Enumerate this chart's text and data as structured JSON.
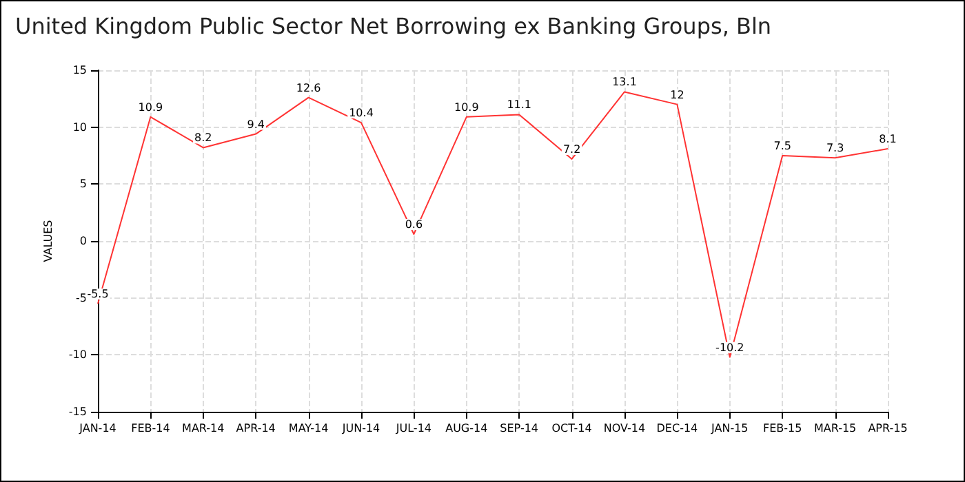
{
  "chart_data": {
    "type": "line",
    "title": "United Kingdom Public Sector Net Borrowing ex Banking Groups, Bln",
    "ylabel": "VALUES",
    "categories": [
      "JAN-14",
      "FEB-14",
      "MAR-14",
      "APR-14",
      "MAY-14",
      "JUN-14",
      "JUL-14",
      "AUG-14",
      "SEP-14",
      "OCT-14",
      "NOV-14",
      "DEC-14",
      "JAN-15",
      "FEB-15",
      "MAR-15",
      "APR-15"
    ],
    "series": [
      {
        "color": "#ff3333",
        "values": [
          -5.5,
          10.9,
          8.2,
          9.4,
          12.6,
          10.4,
          0.6,
          10.9,
          11.1,
          7.2,
          13.1,
          12,
          -10.2,
          7.5,
          7.3,
          8.1
        ]
      }
    ],
    "ylim": [
      -15,
      15
    ],
    "yticks": [
      -15,
      -10,
      -5,
      0,
      5,
      10,
      15
    ],
    "grid": true,
    "data_labels": true,
    "marker": "none",
    "line_style": "solid"
  }
}
